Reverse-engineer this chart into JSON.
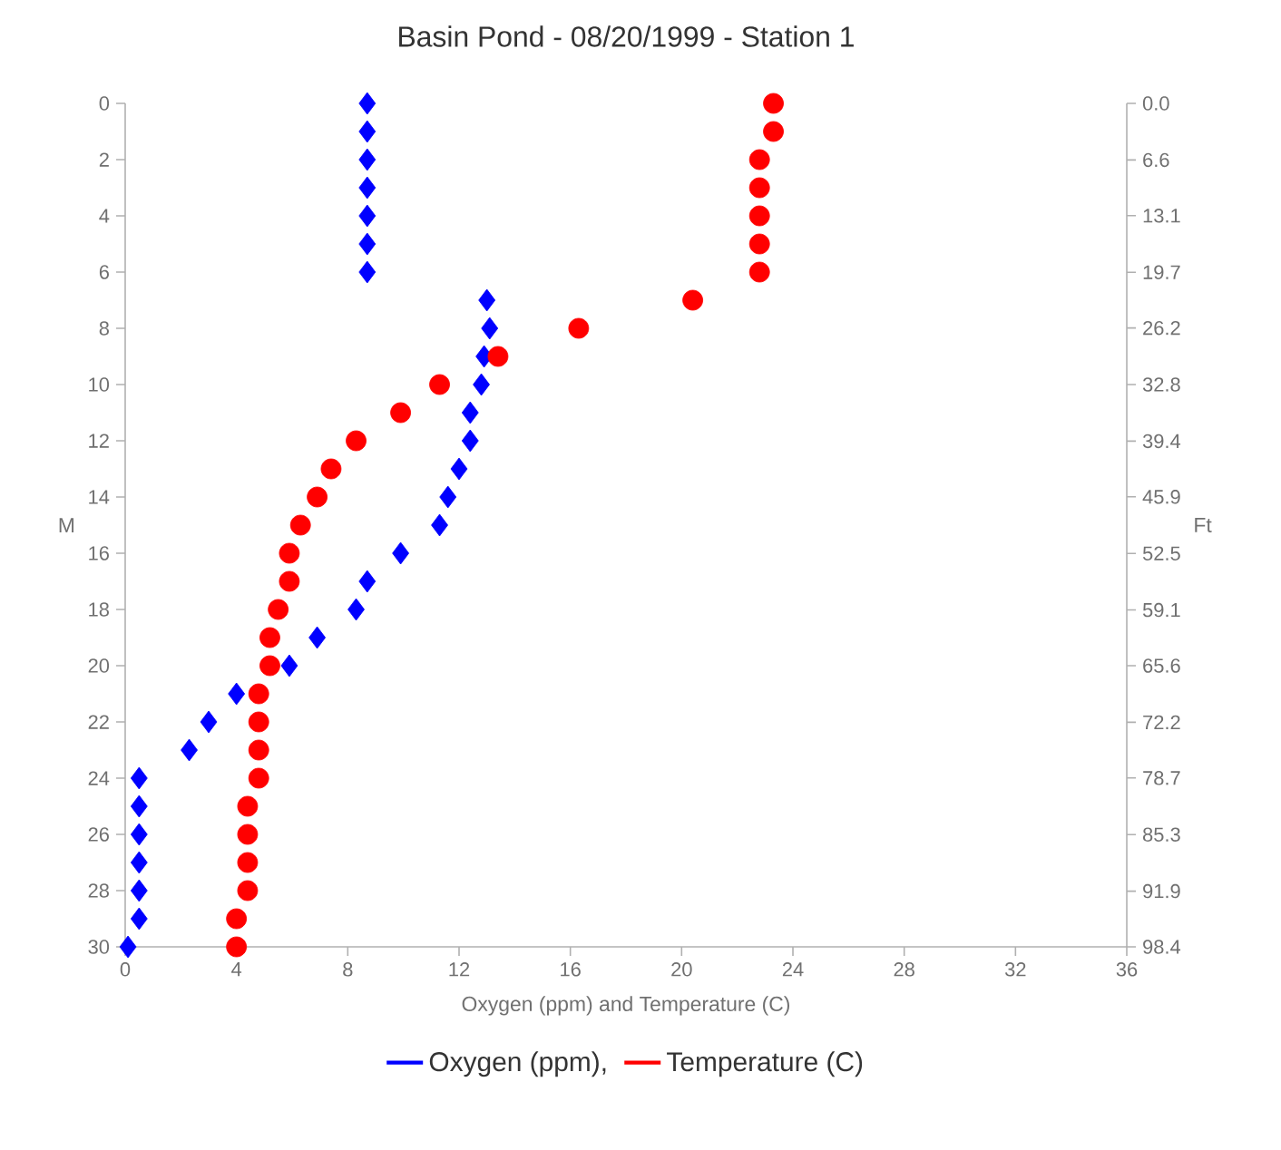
{
  "chart_data": {
    "type": "scatter",
    "title": "Basin Pond - 08/20/1999 - Station 1",
    "xlabel": "Oxygen (ppm) and Temperature (C)",
    "ylabel": "M",
    "y2label": "Ft",
    "xlim": [
      0,
      36
    ],
    "xticks": [
      0,
      4,
      8,
      12,
      16,
      20,
      24,
      28,
      32,
      36
    ],
    "ylim": [
      30,
      0
    ],
    "yticks": [
      0,
      2,
      4,
      6,
      8,
      10,
      12,
      14,
      16,
      18,
      20,
      22,
      24,
      26,
      28,
      30
    ],
    "y2lim": [
      98.4,
      0
    ],
    "y2ticks": [
      {
        "value": 0,
        "label": "0.0"
      },
      6.6,
      13.1,
      19.7,
      26.2,
      32.8,
      39.4,
      45.9,
      52.5,
      59.1,
      65.6,
      72.2,
      78.7,
      85.3,
      91.9,
      98.4
    ],
    "legend": "bottom",
    "grid": false,
    "series": [
      {
        "name": "Oxygen (ppm),",
        "color": "#0000ff",
        "marker": "diamond",
        "x": [
          8.7,
          8.7,
          8.7,
          8.7,
          8.7,
          8.7,
          8.7,
          13.0,
          13.1,
          12.9,
          12.8,
          12.4,
          12.4,
          12.0,
          11.6,
          11.3,
          9.9,
          8.7,
          8.3,
          6.9,
          5.9,
          4.0,
          3.0,
          2.3,
          0.5,
          0.5,
          0.5,
          0.5,
          0.5,
          0.5,
          0.1
        ],
        "values": [
          0,
          1,
          2,
          3,
          4,
          5,
          6,
          7,
          8,
          9,
          10,
          11,
          12,
          13,
          14,
          15,
          16,
          17,
          18,
          19,
          20,
          21,
          22,
          23,
          24,
          25,
          26,
          27,
          28,
          29,
          30
        ]
      },
      {
        "name": "Temperature (C)",
        "color": "#ff0000",
        "marker": "circle",
        "x": [
          23.3,
          23.3,
          22.8,
          22.8,
          22.8,
          22.8,
          22.8,
          20.4,
          16.3,
          13.4,
          11.3,
          9.9,
          8.3,
          7.4,
          6.9,
          6.3,
          5.9,
          5.9,
          5.5,
          5.2,
          5.2,
          4.8,
          4.8,
          4.8,
          4.8,
          4.4,
          4.4,
          4.4,
          4.4,
          4.0,
          4.0
        ],
        "values": [
          0,
          1,
          2,
          3,
          4,
          5,
          6,
          7,
          8,
          9,
          10,
          11,
          12,
          13,
          14,
          15,
          16,
          17,
          18,
          19,
          20,
          21,
          22,
          23,
          24,
          25,
          26,
          27,
          28,
          29,
          30
        ]
      }
    ]
  }
}
